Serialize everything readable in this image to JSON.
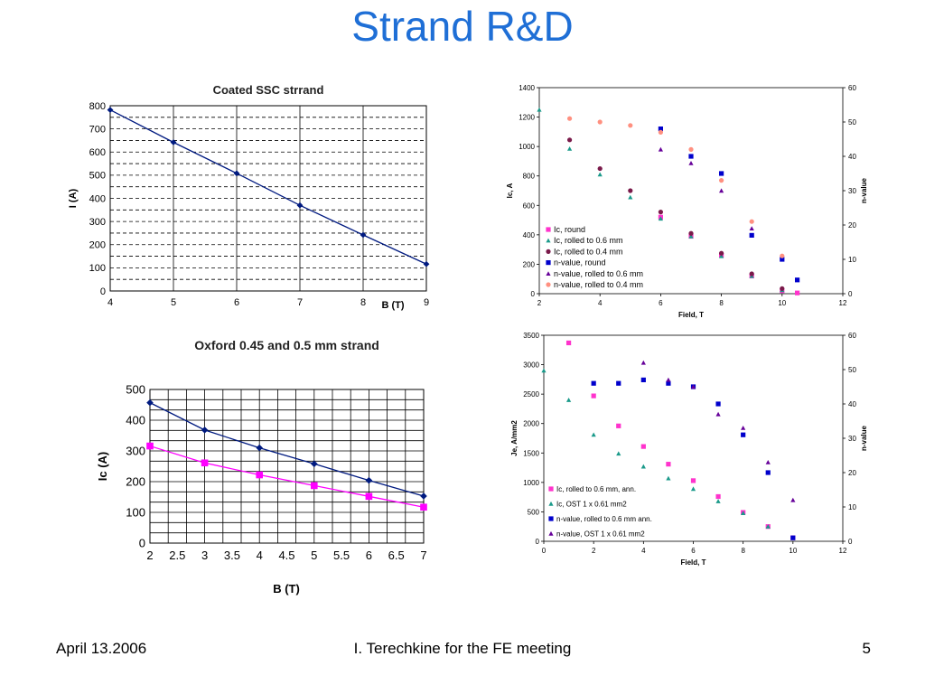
{
  "slide": {
    "title": "Strand R&D",
    "footer_left": "April 13.2006",
    "footer_center": "I. Terechkine for the FE meeting",
    "footer_right": "5"
  },
  "chart_data": [
    {
      "id": "coated",
      "type": "line",
      "title": "Coated SSC strrand",
      "xlabel": "B (T)",
      "ylabel": "I (A)",
      "xlim": [
        4,
        9
      ],
      "ylim": [
        0,
        800
      ],
      "xticks": [
        4,
        5,
        6,
        7,
        8,
        9
      ],
      "yticks": [
        0,
        100,
        200,
        300,
        400,
        500,
        600,
        700,
        800
      ],
      "grid": true,
      "series": [
        {
          "color": "#001a80",
          "marker": "diamond",
          "x": [
            4,
            5,
            6,
            7,
            8,
            9
          ],
          "y": [
            782,
            642,
            508,
            370,
            242,
            116
          ]
        }
      ]
    },
    {
      "id": "oxford",
      "type": "line",
      "title": "Oxford 0.45 and 0.5 mm strand",
      "xlabel": "B (T)",
      "ylabel": "Ic (A)",
      "xlim": [
        2,
        7
      ],
      "ylim": [
        0,
        500
      ],
      "xticks": [
        2,
        2.5,
        3,
        3.5,
        4,
        4.5,
        5,
        5.5,
        6,
        6.5,
        7
      ],
      "yticks": [
        0,
        100,
        200,
        300,
        400,
        500
      ],
      "grid": true,
      "series": [
        {
          "color": "#001a80",
          "marker": "diamond",
          "x": [
            2,
            3,
            4,
            5,
            6,
            7
          ],
          "y": [
            457,
            368,
            310,
            258,
            204,
            153
          ]
        },
        {
          "color": "#ff00ff",
          "marker": "square",
          "x": [
            2,
            3,
            4,
            5,
            6,
            7
          ],
          "y": [
            316,
            261,
            222,
            187,
            152,
            117
          ]
        }
      ]
    },
    {
      "id": "topright",
      "type": "scatter",
      "xlabel": "Field, T",
      "ylabel": "Ic, A",
      "y2label": "n-value",
      "xlim": [
        2,
        12
      ],
      "ylim": [
        0,
        1400
      ],
      "y2lim": [
        0,
        60
      ],
      "xticks": [
        2,
        4,
        6,
        8,
        10,
        12
      ],
      "yticks": [
        0,
        200,
        400,
        600,
        800,
        1000,
        1200,
        1400
      ],
      "y2ticks": [
        0,
        10,
        20,
        30,
        40,
        50,
        60
      ],
      "legend": "bottom-left",
      "series": [
        {
          "name": "Ic, round",
          "color": "#ff33cc",
          "marker": "square",
          "axis": "y",
          "x": [
            6,
            7,
            8,
            9,
            10,
            10.5
          ],
          "y": [
            520,
            390,
            260,
            120,
            20,
            5
          ]
        },
        {
          "name": "Ic, rolled to 0.6 mm",
          "color": "#1a9a8a",
          "marker": "triangle",
          "axis": "y",
          "x": [
            2,
            3,
            4,
            5,
            6,
            7,
            8,
            9,
            10
          ],
          "y": [
            1250,
            985,
            810,
            655,
            510,
            390,
            255,
            120,
            25
          ]
        },
        {
          "name": "Ic, rolled to 0.4 mm",
          "color": "#7a1a4a",
          "marker": "circle",
          "axis": "y",
          "x": [
            3,
            4,
            5,
            6,
            7,
            8,
            9,
            10
          ],
          "y": [
            1045,
            850,
            700,
            555,
            410,
            275,
            135,
            35
          ]
        },
        {
          "name": "n-value, round",
          "color": "#0000cc",
          "marker": "square",
          "axis": "y2",
          "x": [
            6,
            7,
            8,
            9,
            10,
            10.5
          ],
          "y": [
            48,
            40,
            35,
            17,
            10,
            4
          ]
        },
        {
          "name": "n-value, rolled to 0.6 mm",
          "color": "#660099",
          "marker": "triangle",
          "axis": "y2",
          "x": [
            6,
            7,
            8,
            9
          ],
          "y": [
            42,
            38,
            30,
            19
          ]
        },
        {
          "name": "n-value, rolled to 0.4 mm",
          "color": "#ff9080",
          "marker": "circle",
          "axis": "y2",
          "x": [
            3,
            4,
            5,
            6,
            7,
            8,
            9,
            10
          ],
          "y": [
            51,
            50,
            49,
            47,
            42,
            33,
            21,
            11
          ]
        }
      ]
    },
    {
      "id": "bottomright",
      "type": "scatter",
      "xlabel": "Field, T",
      "ylabel": "Je, A/mm2",
      "y2label": "n-value",
      "xlim": [
        0,
        12
      ],
      "ylim": [
        0,
        3500
      ],
      "y2lim": [
        0,
        60
      ],
      "xticks": [
        0,
        2,
        4,
        6,
        8,
        10,
        12
      ],
      "yticks": [
        0,
        500,
        1000,
        1500,
        2000,
        2500,
        3000,
        3500
      ],
      "y2ticks": [
        0,
        10,
        20,
        30,
        40,
        50,
        60
      ],
      "legend": "bottom-left",
      "series": [
        {
          "name": "Ic, rolled to 0.6 mm, ann.",
          "color": "#ff33cc",
          "marker": "square",
          "axis": "y",
          "x": [
            1,
            2,
            3,
            4,
            5,
            6,
            7,
            8,
            9,
            10
          ],
          "y": [
            3370,
            2470,
            1960,
            1610,
            1310,
            1030,
            760,
            490,
            250,
            60
          ]
        },
        {
          "name": "Ic, OST 1 x 0.61 mm2",
          "color": "#1a9a8a",
          "marker": "triangle",
          "axis": "y",
          "x": [
            0,
            1,
            2,
            3,
            4,
            5,
            6,
            7,
            8,
            9,
            10
          ],
          "y": [
            2900,
            2400,
            1810,
            1490,
            1270,
            1070,
            890,
            680,
            480,
            250,
            60
          ]
        },
        {
          "name": "n-value, rolled to 0.6 mm ann.",
          "color": "#0000cc",
          "marker": "square",
          "axis": "y2",
          "x": [
            2,
            3,
            4,
            5,
            6,
            7,
            8,
            9,
            10
          ],
          "y": [
            46,
            46,
            47,
            46,
            45,
            40,
            31,
            20,
            1
          ]
        },
        {
          "name": "n-value, OST 1 x 0.61 mm2",
          "color": "#660099",
          "marker": "triangle",
          "axis": "y2",
          "x": [
            4,
            5,
            6,
            7,
            8,
            9,
            10
          ],
          "y": [
            52,
            47,
            45,
            37,
            33,
            23,
            12
          ]
        }
      ]
    }
  ]
}
